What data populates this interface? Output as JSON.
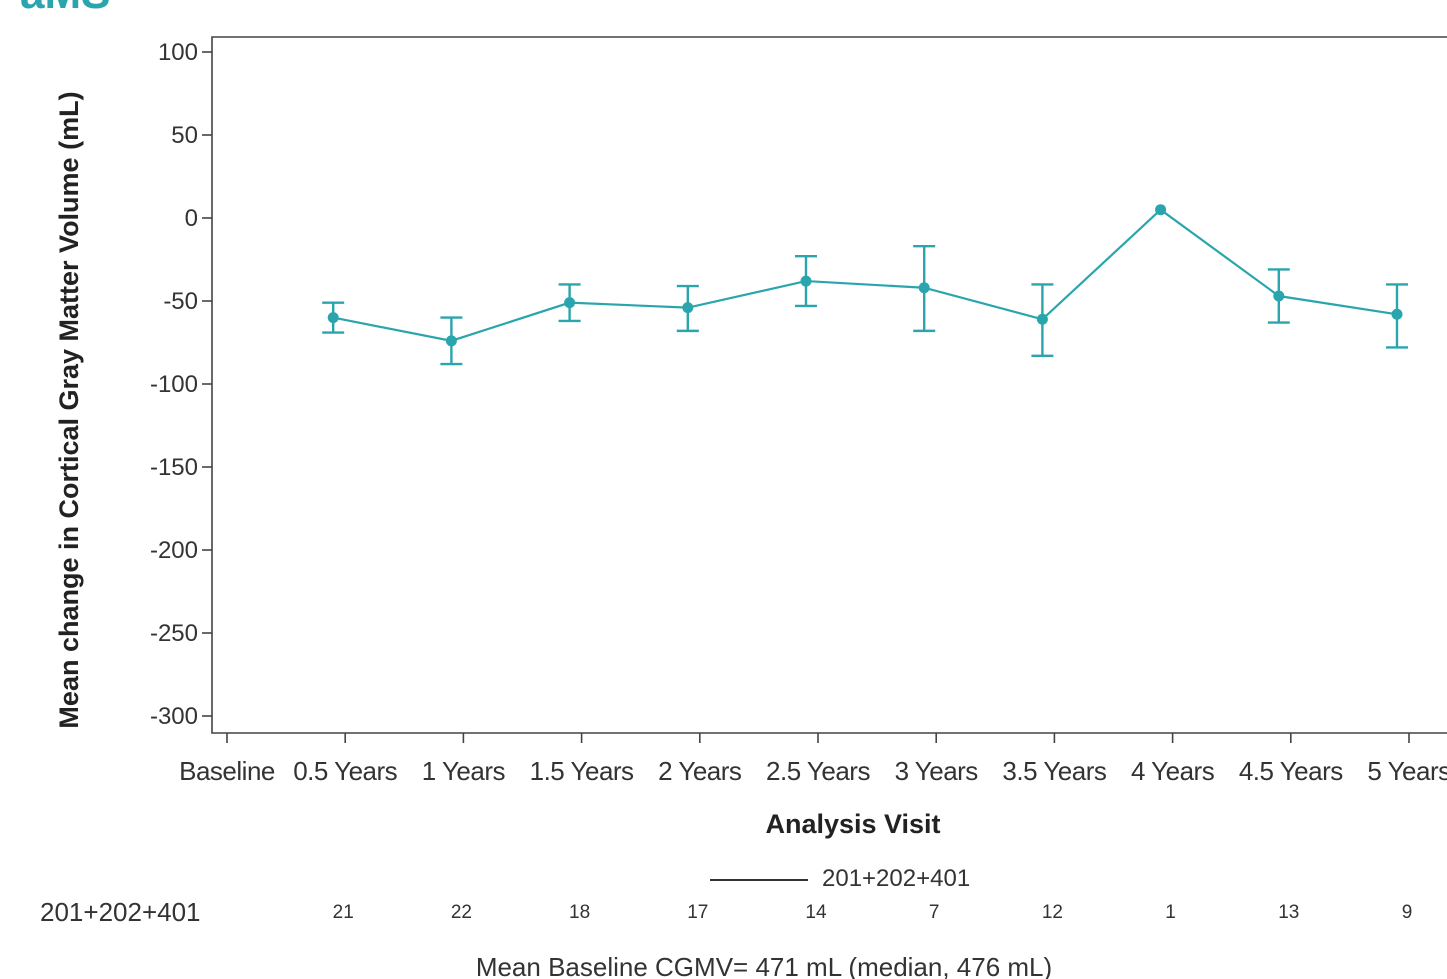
{
  "header_fragment": "aMS",
  "accent_color": "#2aa5ad",
  "chart_data": {
    "type": "line",
    "title": "",
    "xlabel": "Analysis Visit",
    "ylabel": "Mean change in Cortical Gray Matter Volume (mL)",
    "ylim": [
      -300,
      100
    ],
    "yticks": [
      100,
      50,
      0,
      -50,
      -100,
      -150,
      -200,
      -250,
      -300
    ],
    "categories": [
      "Baseline",
      "0.5 Years",
      "1 Years",
      "1.5 Years",
      "2 Years",
      "2.5 Years",
      "3 Years",
      "3.5 Years",
      "4 Years",
      "4.5 Years",
      "5 Years"
    ],
    "grid": false,
    "legend_position": "bottom-center",
    "series": [
      {
        "name": "201+202+401",
        "color": "#2aa5ad",
        "x": [
          "0.5 Years",
          "1 Years",
          "1.5 Years",
          "2 Years",
          "2.5 Years",
          "3 Years",
          "3.5 Years",
          "4 Years",
          "4.5 Years",
          "5 Years"
        ],
        "values": [
          -60,
          -74,
          -51,
          -54,
          -38,
          -42,
          -61,
          5,
          -47,
          -58
        ],
        "error_low": [
          -69,
          -88,
          -62,
          -68,
          -53,
          -68,
          -83,
          null,
          -63,
          -78
        ],
        "error_high": [
          -51,
          -60,
          -40,
          -41,
          -23,
          -17,
          -40,
          null,
          -31,
          -40
        ]
      }
    ],
    "at_risk": {
      "label": "201+202+401",
      "counts": [
        "21",
        "22",
        "18",
        "17",
        "14",
        "7",
        "12",
        "1",
        "13",
        "9"
      ]
    },
    "footnote": "Mean Baseline CGMV= 471 mL (median, 476 mL)"
  }
}
